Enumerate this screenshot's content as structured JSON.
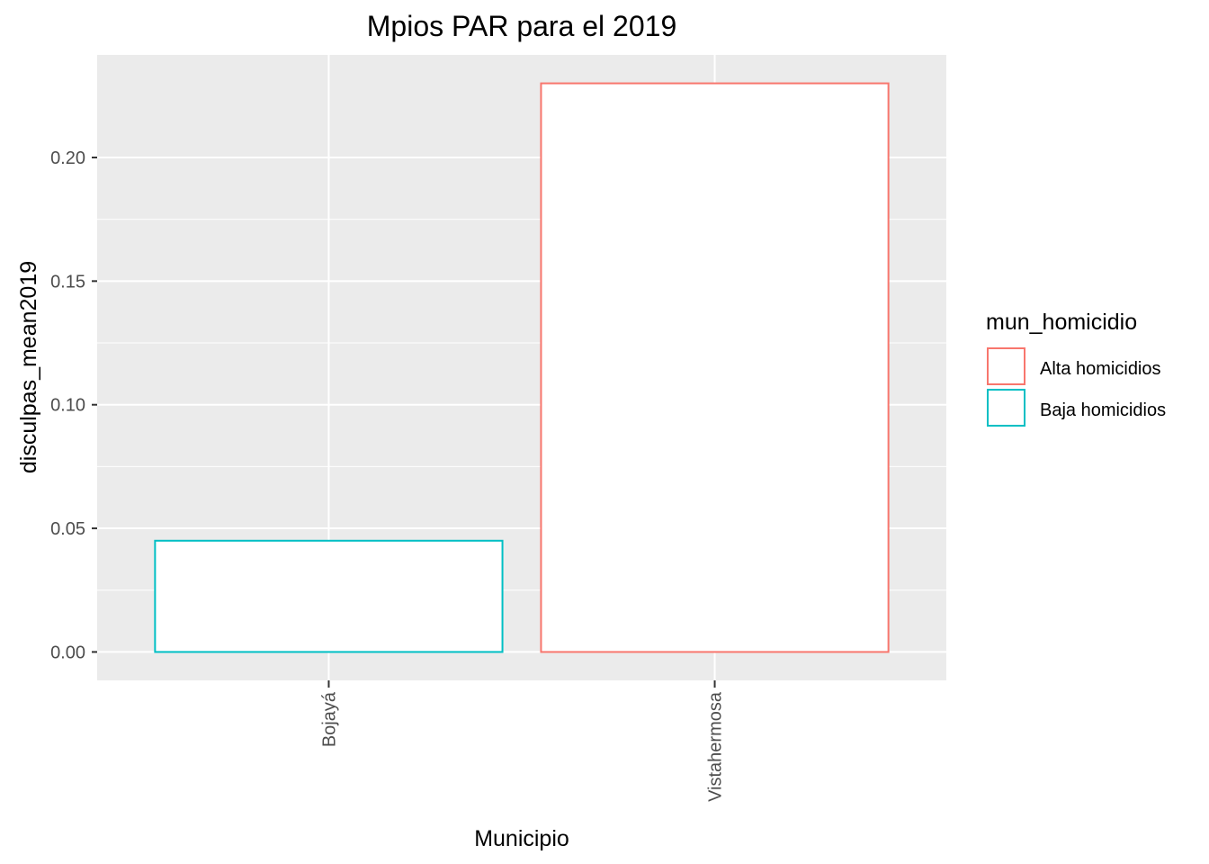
{
  "chart_data": {
    "type": "bar",
    "title": "Mpios PAR para el 2019",
    "xlabel": "Municipio",
    "ylabel": "disculpas_mean2019",
    "categories": [
      "Bojayá",
      "Vistahermosa"
    ],
    "values": [
      0.045,
      0.23
    ],
    "groups": [
      "Baja homicidios",
      "Alta homicidios"
    ],
    "ylim": [
      -0.0115,
      0.2415
    ],
    "yticks": [
      0.0,
      0.05,
      0.1,
      0.15,
      0.2
    ],
    "ytick_labels": [
      "0.00",
      "0.05",
      "0.10",
      "0.15",
      "0.20"
    ],
    "grid": true,
    "panel_background": "#ebebeb",
    "bar_fill": "#ffffff",
    "legend": {
      "title": "mun_homicidio",
      "position": "right",
      "entries": [
        {
          "label": "Alta homicidios",
          "color": "#F8766D"
        },
        {
          "label": "Baja homicidios",
          "color": "#00BFC4"
        }
      ]
    }
  }
}
